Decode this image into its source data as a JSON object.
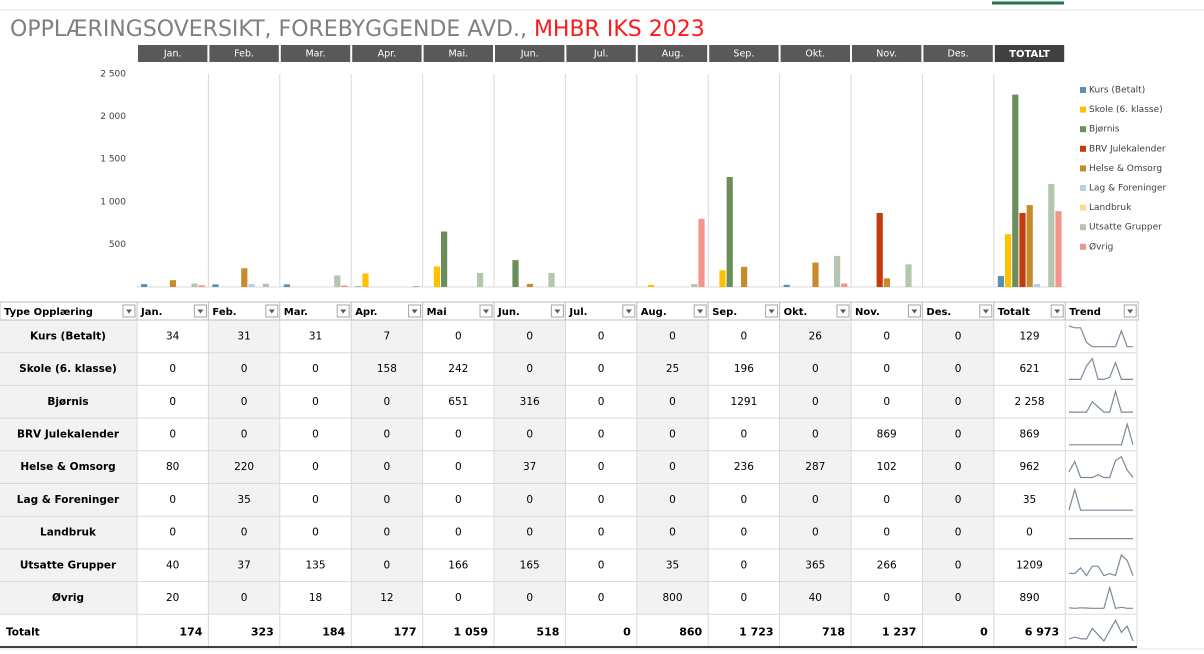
{
  "header": {
    "title": "OPPLÆRINGSOVERSIKT, FOREBYGGENDE AVD., ",
    "title_highlight": "MHBR IKS 2023"
  },
  "chart_data": {
    "type": "bar",
    "categories": [
      "Jan.",
      "Feb.",
      "Mar.",
      "Apr.",
      "Mai.",
      "Jun.",
      "Jul.",
      "Aug.",
      "Sep.",
      "Okt.",
      "Nov.",
      "Des.",
      "TOTALT"
    ],
    "ylim": [
      0,
      2500
    ],
    "yticks": [
      500,
      {
        "value": 1000,
        "label": "1 000"
      },
      {
        "value": 1500,
        "label": "1 500"
      },
      {
        "value": 2000,
        "label": "2 000"
      },
      {
        "value": 2500,
        "label": "2 500"
      }
    ],
    "grid": true,
    "legend": "right",
    "series": [
      {
        "name": "Kurs (Betalt)",
        "color": "#5b8fb0",
        "values": [
          34,
          31,
          31,
          7,
          0,
          0,
          0,
          0,
          0,
          26,
          0,
          0,
          129
        ]
      },
      {
        "name": "Skole (6. klasse)",
        "color": "#ffc000",
        "values": [
          0,
          0,
          0,
          158,
          242,
          0,
          0,
          25,
          196,
          0,
          0,
          0,
          621
        ]
      },
      {
        "name": "Bjørnis",
        "color": "#6b8e5a",
        "values": [
          0,
          0,
          0,
          0,
          651,
          316,
          0,
          0,
          1291,
          0,
          0,
          0,
          2258
        ],
        "value_labels": [
          "0",
          "0",
          "0",
          "0",
          "651",
          "316",
          "0",
          "0",
          "1291",
          "0",
          "0",
          "0",
          "2 258"
        ]
      },
      {
        "name": "BRV Julekalender",
        "color": "#c43c0e",
        "values": [
          0,
          0,
          0,
          0,
          0,
          0,
          0,
          0,
          0,
          0,
          869,
          0,
          869
        ]
      },
      {
        "name": "Helse & Omsorg",
        "color": "#c98a2c",
        "values": [
          80,
          220,
          0,
          0,
          0,
          37,
          0,
          0,
          236,
          287,
          102,
          0,
          962
        ]
      },
      {
        "name": "Lag & Foreninger",
        "color": "#b7cde3",
        "values": [
          0,
          35,
          0,
          0,
          0,
          0,
          0,
          0,
          0,
          0,
          0,
          0,
          35
        ]
      },
      {
        "name": "Landbruk",
        "color": "#ffd98c",
        "values": [
          0,
          0,
          0,
          0,
          0,
          0,
          0,
          0,
          0,
          0,
          0,
          0,
          0
        ]
      },
      {
        "name": "Utsatte Grupper",
        "color": "#b5c6ae",
        "values": [
          40,
          37,
          135,
          0,
          166,
          165,
          0,
          35,
          0,
          365,
          266,
          0,
          1209
        ],
        "value_labels": [
          "40",
          "37",
          "135",
          "0",
          "166",
          "165",
          "0",
          "35",
          "0",
          "365",
          "266",
          "0",
          "1209"
        ]
      },
      {
        "name": "Øvrig",
        "color": "#f4948c",
        "values": [
          20,
          0,
          18,
          12,
          0,
          0,
          0,
          800,
          0,
          40,
          0,
          0,
          890
        ]
      }
    ]
  },
  "table": {
    "columns": [
      "Type Opplæring",
      "Jan.",
      "Feb.",
      "Mar.",
      "Apr.",
      "Mai",
      "Jun.",
      "Jul.",
      "Aug.",
      "Sep.",
      "Okt.",
      "Nov.",
      "Des.",
      "Totalt",
      "Trend"
    ],
    "totals": {
      "label": "Totalt",
      "values": [
        174,
        323,
        184,
        177,
        1059,
        518,
        0,
        860,
        1723,
        718,
        1237,
        0,
        6973
      ],
      "value_labels": [
        "174",
        "323",
        "184",
        "177",
        "1 059",
        "518",
        "0",
        "860",
        "1 723",
        "718",
        "1 237",
        "0",
        "6 973"
      ]
    }
  }
}
